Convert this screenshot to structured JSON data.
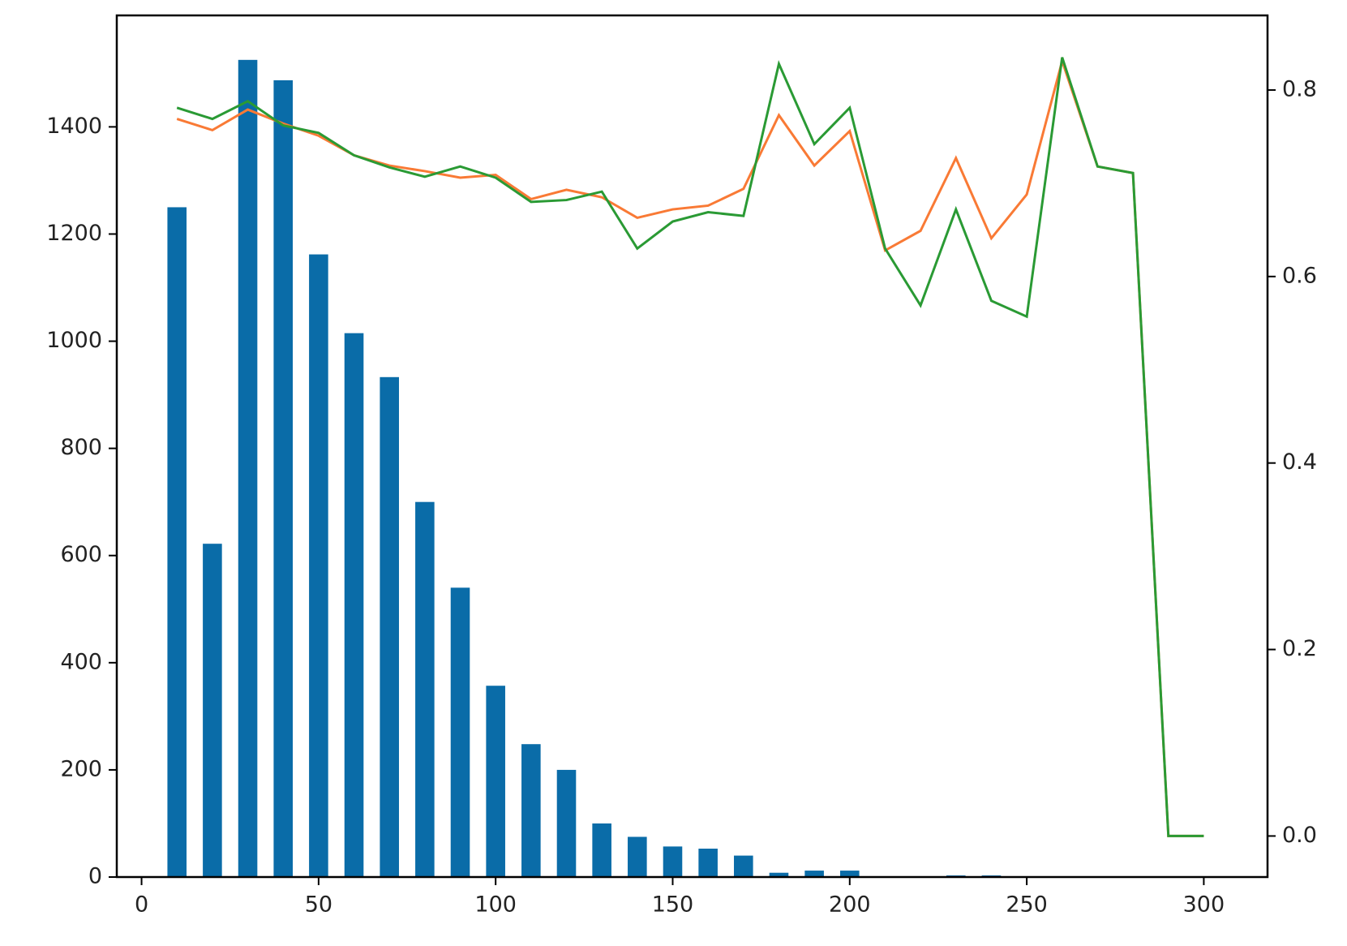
{
  "chart_data": {
    "type": "bar_line",
    "x": [
      10,
      20,
      30,
      40,
      50,
      60,
      70,
      80,
      90,
      100,
      110,
      120,
      130,
      140,
      150,
      160,
      170,
      180,
      190,
      200,
      210,
      220,
      230,
      240,
      250,
      260,
      270,
      280,
      290,
      300
    ],
    "series": [
      {
        "type": "bar",
        "color": "#0a6ca8",
        "axis": "y",
        "values": [
          1250,
          622,
          1525,
          1487,
          1162,
          1015,
          933,
          700,
          540,
          357,
          248,
          200,
          100,
          75,
          57,
          53,
          40,
          8,
          12,
          12,
          0,
          0,
          3,
          3,
          0,
          0,
          0,
          0,
          0,
          0
        ]
      },
      {
        "type": "line",
        "color": "#f97a35",
        "axis": "y2",
        "values": [
          0.769,
          0.757,
          0.779,
          0.764,
          0.751,
          0.73,
          0.719,
          0.713,
          0.706,
          0.709,
          0.683,
          0.693,
          0.685,
          0.663,
          0.672,
          0.676,
          0.694,
          0.773,
          0.719,
          0.756,
          0.628,
          0.649,
          0.727,
          0.641,
          0.688,
          0.831,
          0.718,
          0.711,
          0.0,
          0.0
        ]
      },
      {
        "type": "line",
        "color": "#2a9a34",
        "axis": "y2",
        "values": [
          0.781,
          0.769,
          0.788,
          0.762,
          0.754,
          0.73,
          0.717,
          0.707,
          0.718,
          0.706,
          0.68,
          0.682,
          0.691,
          0.63,
          0.659,
          0.669,
          0.665,
          0.828,
          0.742,
          0.781,
          0.63,
          0.569,
          0.672,
          0.574,
          0.557,
          0.835,
          0.718,
          0.711,
          0.0,
          0.0
        ]
      }
    ],
    "xlim": [
      -7,
      318
    ],
    "xticks": [
      0,
      50,
      100,
      150,
      200,
      250,
      300
    ],
    "ylim": [
      0,
      1608
    ],
    "yticks": [
      0,
      200,
      400,
      600,
      800,
      1000,
      1200,
      1400
    ],
    "y2lim": [
      -0.044,
      0.88
    ],
    "y2ticks": [
      {
        "value": 0,
        "label": "0.0"
      },
      0.2,
      0.4,
      0.6,
      0.8
    ],
    "grid": false
  }
}
